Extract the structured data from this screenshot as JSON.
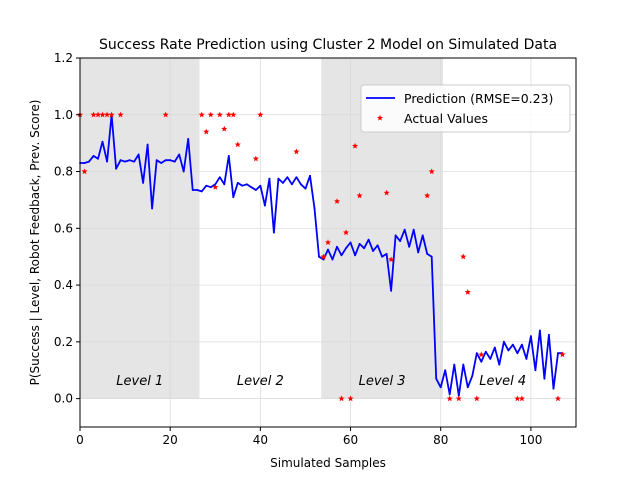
{
  "chart_data": {
    "type": "line",
    "title": "Success Rate Prediction using Cluster 2 Model on Simulated Data",
    "xlabel": "Simulated Samples",
    "ylabel": "P(Success | Level, Robot Feedback, Prev. Score)",
    "xlim": [
      0,
      110
    ],
    "ylim": [
      -0.1,
      1.2
    ],
    "x_ticks": [
      0,
      20,
      40,
      60,
      80,
      100
    ],
    "y_ticks": [
      0.0,
      0.2,
      0.4,
      0.6,
      0.8,
      1.0,
      1.2
    ],
    "x_tick_labels": [
      "0",
      "20",
      "40",
      "60",
      "80",
      "100"
    ],
    "y_tick_labels": [
      "0.0",
      "0.2",
      "0.4",
      "0.6",
      "0.8",
      "1.0",
      "1.2"
    ],
    "grid": true,
    "legend_position": "upper-right",
    "level_regions": [
      {
        "label": "Level 1",
        "start": 0,
        "end": 26.5,
        "shaded": true
      },
      {
        "label": "Level 2",
        "start": 26.5,
        "end": 53.5,
        "shaded": false
      },
      {
        "label": "Level 3",
        "start": 53.5,
        "end": 80.5,
        "shaded": true
      },
      {
        "label": "Level 4",
        "start": 80.5,
        "end": 110,
        "shaded": false
      }
    ],
    "series": [
      {
        "name": "Prediction (RMSE=0.23)",
        "kind": "line",
        "color": "#0000ff",
        "x": [
          0,
          1,
          2,
          3,
          4,
          5,
          6,
          7,
          8,
          9,
          10,
          11,
          12,
          13,
          14,
          15,
          16,
          17,
          18,
          19,
          20,
          21,
          22,
          23,
          24,
          25,
          26,
          27,
          28,
          29,
          30,
          31,
          32,
          33,
          34,
          35,
          36,
          37,
          38,
          39,
          40,
          41,
          42,
          43,
          44,
          45,
          46,
          47,
          48,
          49,
          50,
          51,
          52,
          53,
          54,
          55,
          56,
          57,
          58,
          59,
          60,
          61,
          62,
          63,
          64,
          65,
          66,
          67,
          68,
          69,
          70,
          71,
          72,
          73,
          74,
          75,
          76,
          77,
          78,
          79,
          80,
          81,
          82,
          83,
          84,
          85,
          86,
          87,
          88,
          89,
          90,
          91,
          92,
          93,
          94,
          95,
          96,
          97,
          98,
          99,
          100,
          101,
          102,
          103,
          104,
          105,
          106,
          107
        ],
        "y": [
          0.83,
          0.83,
          0.835,
          0.855,
          0.845,
          0.905,
          0.835,
          1.0,
          0.81,
          0.84,
          0.835,
          0.84,
          0.835,
          0.86,
          0.76,
          0.895,
          0.67,
          0.84,
          0.83,
          0.84,
          0.84,
          0.835,
          0.86,
          0.8,
          0.915,
          0.735,
          0.735,
          0.73,
          0.75,
          0.745,
          0.755,
          0.78,
          0.755,
          0.855,
          0.71,
          0.76,
          0.75,
          0.755,
          0.745,
          0.735,
          0.75,
          0.68,
          0.775,
          0.585,
          0.775,
          0.76,
          0.78,
          0.755,
          0.78,
          0.755,
          0.74,
          0.785,
          0.67,
          0.5,
          0.49,
          0.525,
          0.49,
          0.535,
          0.505,
          0.53,
          0.55,
          0.505,
          0.545,
          0.53,
          0.56,
          0.52,
          0.54,
          0.5,
          0.51,
          0.38,
          0.575,
          0.555,
          0.595,
          0.535,
          0.595,
          0.515,
          0.575,
          0.51,
          0.5,
          0.07,
          0.04,
          0.1,
          0.015,
          0.12,
          0.01,
          0.12,
          0.04,
          0.08,
          0.16,
          0.13,
          0.165,
          0.14,
          0.18,
          0.12,
          0.2,
          0.17,
          0.19,
          0.16,
          0.19,
          0.14,
          0.22,
          0.1,
          0.24,
          0.07,
          0.225,
          0.035,
          0.16,
          0.16
        ]
      },
      {
        "name": "Actual Values",
        "kind": "scatter",
        "color": "#ff0000",
        "x": [
          0,
          1,
          3,
          4,
          5,
          6,
          7,
          9,
          19,
          27,
          28,
          29,
          30,
          31,
          32,
          33,
          34,
          35,
          39,
          40,
          48,
          54,
          55,
          57,
          58,
          59,
          60,
          61,
          62,
          68,
          69,
          77,
          78,
          82,
          84,
          85,
          86,
          88,
          89,
          97,
          98,
          106,
          107
        ],
        "y": [
          1.0,
          0.8,
          1.0,
          1.0,
          1.0,
          1.0,
          1.0,
          1.0,
          1.0,
          1.0,
          0.94,
          1.0,
          0.745,
          1.0,
          0.95,
          1.0,
          1.0,
          0.895,
          0.845,
          1.0,
          0.87,
          0.5,
          0.55,
          0.695,
          0.0,
          0.585,
          0.0,
          0.89,
          0.715,
          0.725,
          0.49,
          0.715,
          0.8,
          0.0,
          0.0,
          0.5,
          0.375,
          0.0,
          0.155,
          0.0,
          0.0,
          0.0,
          0.155
        ]
      }
    ]
  }
}
